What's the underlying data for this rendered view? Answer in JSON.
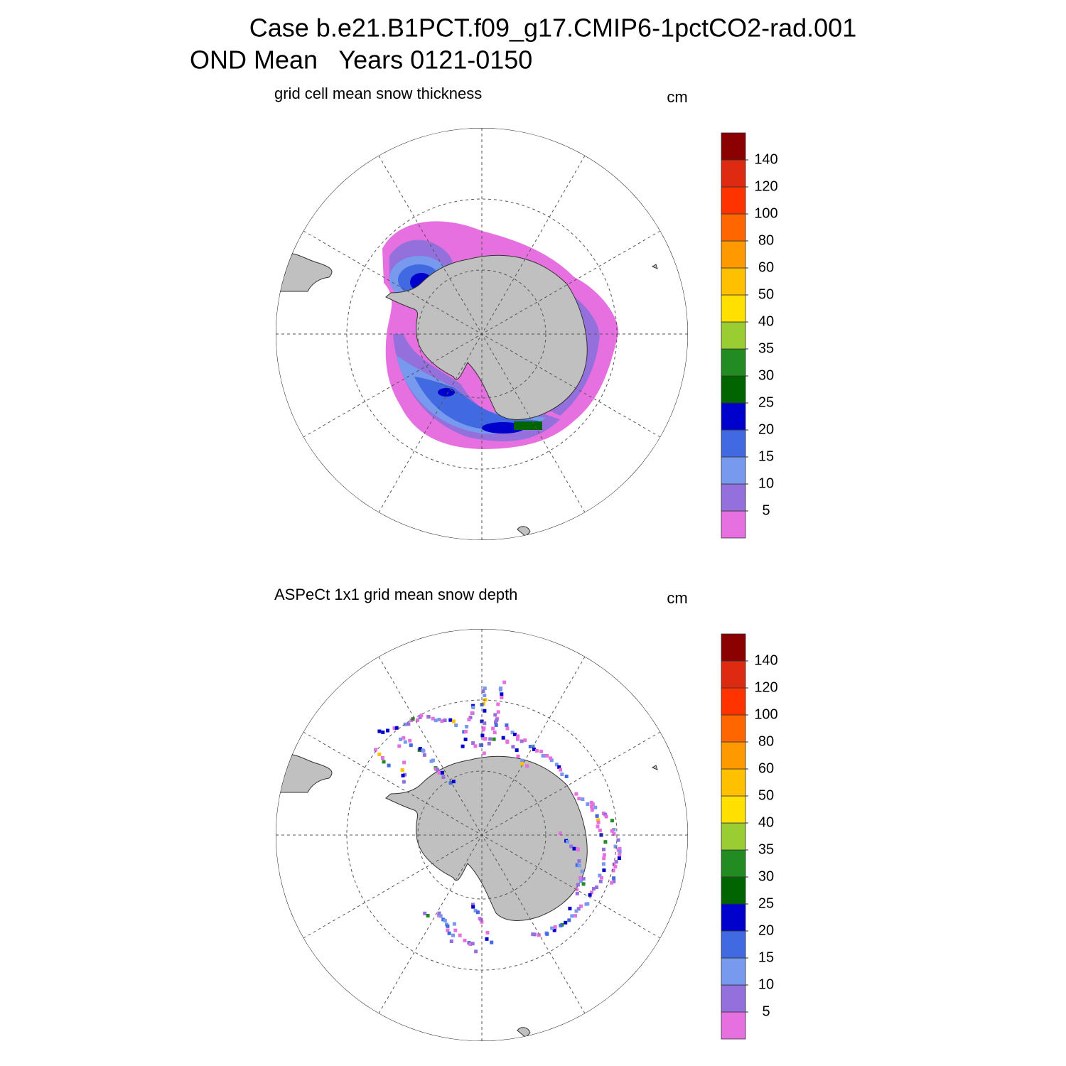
{
  "title": {
    "line1": "Case b.e21.B1PCT.f09_g17.CMIP6-1pctCO2-rad.001",
    "line2": "OND Mean   Years 0121-0150"
  },
  "panels": [
    {
      "title": "grid cell mean snow thickness",
      "units": "cm",
      "colorbar": {
        "levels": [
          5,
          10,
          15,
          20,
          25,
          30,
          35,
          40,
          50,
          60,
          80,
          100,
          120,
          140
        ],
        "colors": [
          "#e770e0",
          "#9370db",
          "#7799ee",
          "#4169e1",
          "#0000cd",
          "#006400",
          "#228b22",
          "#9acd32",
          "#ffe000",
          "#ffc000",
          "#ff9900",
          "#ff6600",
          "#ff3300",
          "#dd2a10",
          "#8b0000"
        ]
      }
    },
    {
      "title": "ASPeCt 1x1 grid mean snow depth",
      "units": "cm",
      "colorbar": {
        "levels": [
          5,
          10,
          15,
          20,
          25,
          30,
          35,
          40,
          50,
          60,
          80,
          100,
          120,
          140
        ],
        "colors": [
          "#e770e0",
          "#9370db",
          "#7799ee",
          "#4169e1",
          "#0000cd",
          "#006400",
          "#228b22",
          "#9acd32",
          "#ffe000",
          "#ffc000",
          "#ff9900",
          "#ff6600",
          "#ff3300",
          "#dd2a10",
          "#8b0000"
        ]
      }
    }
  ]
}
